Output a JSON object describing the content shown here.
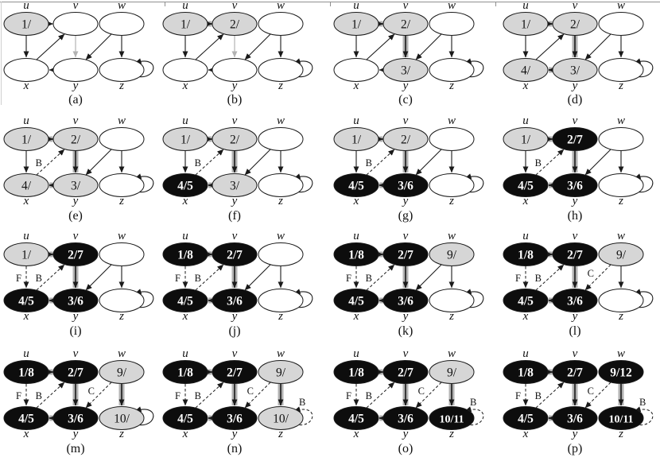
{
  "figure": {
    "title": "dfs-progress-figure",
    "vertices": [
      "u",
      "v",
      "w",
      "x",
      "y",
      "z"
    ],
    "colors": {
      "gray_fill": "#d6d6d6",
      "black_fill": "#0d0d0d",
      "white_fill": "#ffffff",
      "node_stroke": "#1a1a1a",
      "edge_black": "#1a1a1a",
      "edge_faint": "#b2b2b2",
      "tree_band": "#b2b2b2",
      "tree_core": "#2a2a2a",
      "text_black": "#111111",
      "text_white": "#ffffff"
    },
    "panels": [
      {
        "caption": "(a)",
        "nodes": {
          "u": {
            "state": "gray",
            "label": "1/"
          },
          "v": {
            "state": "white",
            "label": ""
          },
          "w": {
            "state": "white",
            "label": ""
          },
          "x": {
            "state": "white",
            "label": ""
          },
          "y": {
            "state": "white",
            "label": ""
          },
          "z": {
            "state": "white",
            "label": ""
          }
        },
        "edges": {
          "uv": {
            "style": "solid"
          },
          "ux": {
            "style": "solid"
          },
          "xv": {
            "style": "solid"
          },
          "vy": {
            "style": "faint"
          },
          "yx": {
            "style": "solid"
          },
          "wy": {
            "style": "solid"
          },
          "wz": {
            "style": "solid"
          },
          "zz": {
            "style": "solid"
          }
        }
      },
      {
        "caption": "(b)",
        "nodes": {
          "u": {
            "state": "gray",
            "label": "1/"
          },
          "v": {
            "state": "gray",
            "label": "2/"
          },
          "w": {
            "state": "white",
            "label": ""
          },
          "x": {
            "state": "white",
            "label": ""
          },
          "y": {
            "state": "white",
            "label": ""
          },
          "z": {
            "state": "white",
            "label": ""
          }
        },
        "edges": {
          "uv": {
            "style": "tree"
          },
          "ux": {
            "style": "solid"
          },
          "xv": {
            "style": "solid"
          },
          "vy": {
            "style": "faint"
          },
          "yx": {
            "style": "solid"
          },
          "wy": {
            "style": "solid"
          },
          "wz": {
            "style": "solid"
          },
          "zz": {
            "style": "solid"
          }
        }
      },
      {
        "caption": "(c)",
        "nodes": {
          "u": {
            "state": "gray",
            "label": "1/"
          },
          "v": {
            "state": "gray",
            "label": "2/"
          },
          "w": {
            "state": "white",
            "label": ""
          },
          "x": {
            "state": "white",
            "label": ""
          },
          "y": {
            "state": "gray",
            "label": "3/"
          },
          "z": {
            "state": "white",
            "label": ""
          }
        },
        "edges": {
          "uv": {
            "style": "tree"
          },
          "ux": {
            "style": "solid"
          },
          "xv": {
            "style": "solid"
          },
          "vy": {
            "style": "tree"
          },
          "yx": {
            "style": "solid"
          },
          "wy": {
            "style": "solid"
          },
          "wz": {
            "style": "solid"
          },
          "zz": {
            "style": "solid"
          }
        }
      },
      {
        "caption": "(d)",
        "nodes": {
          "u": {
            "state": "gray",
            "label": "1/"
          },
          "v": {
            "state": "gray",
            "label": "2/"
          },
          "w": {
            "state": "white",
            "label": ""
          },
          "x": {
            "state": "gray",
            "label": "4/"
          },
          "y": {
            "state": "gray",
            "label": "3/"
          },
          "z": {
            "state": "white",
            "label": ""
          }
        },
        "edges": {
          "uv": {
            "style": "tree"
          },
          "ux": {
            "style": "solid"
          },
          "xv": {
            "style": "solid"
          },
          "vy": {
            "style": "tree"
          },
          "yx": {
            "style": "tree"
          },
          "wy": {
            "style": "solid"
          },
          "wz": {
            "style": "solid"
          },
          "zz": {
            "style": "solid"
          }
        }
      },
      {
        "caption": "(e)",
        "nodes": {
          "u": {
            "state": "gray",
            "label": "1/"
          },
          "v": {
            "state": "gray",
            "label": "2/"
          },
          "w": {
            "state": "white",
            "label": ""
          },
          "x": {
            "state": "gray",
            "label": "4/"
          },
          "y": {
            "state": "gray",
            "label": "3/"
          },
          "z": {
            "state": "white",
            "label": ""
          }
        },
        "edges": {
          "uv": {
            "style": "tree"
          },
          "ux": {
            "style": "solid"
          },
          "xv": {
            "style": "dashed",
            "label": "B"
          },
          "vy": {
            "style": "tree"
          },
          "yx": {
            "style": "tree"
          },
          "wy": {
            "style": "solid"
          },
          "wz": {
            "style": "solid"
          },
          "zz": {
            "style": "solid"
          }
        }
      },
      {
        "caption": "(f)",
        "nodes": {
          "u": {
            "state": "gray",
            "label": "1/"
          },
          "v": {
            "state": "gray",
            "label": "2/"
          },
          "w": {
            "state": "white",
            "label": ""
          },
          "x": {
            "state": "black",
            "label": "4/5"
          },
          "y": {
            "state": "gray",
            "label": "3/"
          },
          "z": {
            "state": "white",
            "label": ""
          }
        },
        "edges": {
          "uv": {
            "style": "tree"
          },
          "ux": {
            "style": "solid"
          },
          "xv": {
            "style": "dashed",
            "label": "B"
          },
          "vy": {
            "style": "tree"
          },
          "yx": {
            "style": "tree"
          },
          "wy": {
            "style": "solid"
          },
          "wz": {
            "style": "solid"
          },
          "zz": {
            "style": "solid"
          }
        }
      },
      {
        "caption": "(g)",
        "nodes": {
          "u": {
            "state": "gray",
            "label": "1/"
          },
          "v": {
            "state": "gray",
            "label": "2/"
          },
          "w": {
            "state": "white",
            "label": ""
          },
          "x": {
            "state": "black",
            "label": "4/5"
          },
          "y": {
            "state": "black",
            "label": "3/6"
          },
          "z": {
            "state": "white",
            "label": ""
          }
        },
        "edges": {
          "uv": {
            "style": "tree"
          },
          "ux": {
            "style": "solid"
          },
          "xv": {
            "style": "dashed",
            "label": "B"
          },
          "vy": {
            "style": "tree"
          },
          "yx": {
            "style": "tree"
          },
          "wy": {
            "style": "solid"
          },
          "wz": {
            "style": "solid"
          },
          "zz": {
            "style": "solid"
          }
        }
      },
      {
        "caption": "(h)",
        "nodes": {
          "u": {
            "state": "gray",
            "label": "1/"
          },
          "v": {
            "state": "black",
            "label": "2/7"
          },
          "w": {
            "state": "white",
            "label": ""
          },
          "x": {
            "state": "black",
            "label": "4/5"
          },
          "y": {
            "state": "black",
            "label": "3/6"
          },
          "z": {
            "state": "white",
            "label": ""
          }
        },
        "edges": {
          "uv": {
            "style": "tree"
          },
          "ux": {
            "style": "solid"
          },
          "xv": {
            "style": "dashed",
            "label": "B"
          },
          "vy": {
            "style": "tree"
          },
          "yx": {
            "style": "tree"
          },
          "wy": {
            "style": "solid"
          },
          "wz": {
            "style": "solid"
          },
          "zz": {
            "style": "solid"
          }
        }
      },
      {
        "caption": "(i)",
        "nodes": {
          "u": {
            "state": "gray",
            "label": "1/"
          },
          "v": {
            "state": "black",
            "label": "2/7"
          },
          "w": {
            "state": "white",
            "label": ""
          },
          "x": {
            "state": "black",
            "label": "4/5"
          },
          "y": {
            "state": "black",
            "label": "3/6"
          },
          "z": {
            "state": "white",
            "label": ""
          }
        },
        "edges": {
          "uv": {
            "style": "tree"
          },
          "ux": {
            "style": "dashed",
            "label": "F"
          },
          "xv": {
            "style": "dashed",
            "label": "B"
          },
          "vy": {
            "style": "tree"
          },
          "yx": {
            "style": "tree"
          },
          "wy": {
            "style": "solid"
          },
          "wz": {
            "style": "solid"
          },
          "zz": {
            "style": "solid"
          }
        }
      },
      {
        "caption": "(j)",
        "nodes": {
          "u": {
            "state": "black",
            "label": "1/8"
          },
          "v": {
            "state": "black",
            "label": "2/7"
          },
          "w": {
            "state": "white",
            "label": ""
          },
          "x": {
            "state": "black",
            "label": "4/5"
          },
          "y": {
            "state": "black",
            "label": "3/6"
          },
          "z": {
            "state": "white",
            "label": ""
          }
        },
        "edges": {
          "uv": {
            "style": "tree"
          },
          "ux": {
            "style": "dashed",
            "label": "F"
          },
          "xv": {
            "style": "dashed",
            "label": "B"
          },
          "vy": {
            "style": "tree"
          },
          "yx": {
            "style": "tree"
          },
          "wy": {
            "style": "solid"
          },
          "wz": {
            "style": "solid"
          },
          "zz": {
            "style": "solid"
          }
        }
      },
      {
        "caption": "(k)",
        "nodes": {
          "u": {
            "state": "black",
            "label": "1/8"
          },
          "v": {
            "state": "black",
            "label": "2/7"
          },
          "w": {
            "state": "gray",
            "label": "9/"
          },
          "x": {
            "state": "black",
            "label": "4/5"
          },
          "y": {
            "state": "black",
            "label": "3/6"
          },
          "z": {
            "state": "white",
            "label": ""
          }
        },
        "edges": {
          "uv": {
            "style": "tree"
          },
          "ux": {
            "style": "dashed",
            "label": "F"
          },
          "xv": {
            "style": "dashed",
            "label": "B"
          },
          "vy": {
            "style": "tree"
          },
          "yx": {
            "style": "tree"
          },
          "wy": {
            "style": "solid"
          },
          "wz": {
            "style": "solid"
          },
          "zz": {
            "style": "solid"
          }
        }
      },
      {
        "caption": "(l)",
        "nodes": {
          "u": {
            "state": "black",
            "label": "1/8"
          },
          "v": {
            "state": "black",
            "label": "2/7"
          },
          "w": {
            "state": "gray",
            "label": "9/"
          },
          "x": {
            "state": "black",
            "label": "4/5"
          },
          "y": {
            "state": "black",
            "label": "3/6"
          },
          "z": {
            "state": "white",
            "label": ""
          }
        },
        "edges": {
          "uv": {
            "style": "tree"
          },
          "ux": {
            "style": "dashed",
            "label": "F"
          },
          "xv": {
            "style": "dashed",
            "label": "B"
          },
          "vy": {
            "style": "tree"
          },
          "yx": {
            "style": "tree"
          },
          "wy": {
            "style": "dashed",
            "label": "C"
          },
          "wz": {
            "style": "solid"
          },
          "zz": {
            "style": "solid"
          }
        }
      },
      {
        "caption": "(m)",
        "nodes": {
          "u": {
            "state": "black",
            "label": "1/8"
          },
          "v": {
            "state": "black",
            "label": "2/7"
          },
          "w": {
            "state": "gray",
            "label": "9/"
          },
          "x": {
            "state": "black",
            "label": "4/5"
          },
          "y": {
            "state": "black",
            "label": "3/6"
          },
          "z": {
            "state": "gray",
            "label": "10/"
          }
        },
        "edges": {
          "uv": {
            "style": "tree"
          },
          "ux": {
            "style": "dashed",
            "label": "F"
          },
          "xv": {
            "style": "dashed",
            "label": "B"
          },
          "vy": {
            "style": "tree"
          },
          "yx": {
            "style": "tree"
          },
          "wy": {
            "style": "dashed",
            "label": "C"
          },
          "wz": {
            "style": "tree"
          },
          "zz": {
            "style": "solid"
          }
        }
      },
      {
        "caption": "(n)",
        "nodes": {
          "u": {
            "state": "black",
            "label": "1/8"
          },
          "v": {
            "state": "black",
            "label": "2/7"
          },
          "w": {
            "state": "gray",
            "label": "9/"
          },
          "x": {
            "state": "black",
            "label": "4/5"
          },
          "y": {
            "state": "black",
            "label": "3/6"
          },
          "z": {
            "state": "gray",
            "label": "10/"
          }
        },
        "edges": {
          "uv": {
            "style": "tree"
          },
          "ux": {
            "style": "dashed",
            "label": "F"
          },
          "xv": {
            "style": "dashed",
            "label": "B"
          },
          "vy": {
            "style": "tree"
          },
          "yx": {
            "style": "tree"
          },
          "wy": {
            "style": "dashed",
            "label": "C"
          },
          "wz": {
            "style": "tree"
          },
          "zz": {
            "style": "dashed",
            "label": "B"
          }
        }
      },
      {
        "caption": "(o)",
        "nodes": {
          "u": {
            "state": "black",
            "label": "1/8"
          },
          "v": {
            "state": "black",
            "label": "2/7"
          },
          "w": {
            "state": "gray",
            "label": "9/"
          },
          "x": {
            "state": "black",
            "label": "4/5"
          },
          "y": {
            "state": "black",
            "label": "3/6"
          },
          "z": {
            "state": "black",
            "label": "10/11"
          }
        },
        "edges": {
          "uv": {
            "style": "tree"
          },
          "ux": {
            "style": "dashed",
            "label": "F"
          },
          "xv": {
            "style": "dashed",
            "label": "B"
          },
          "vy": {
            "style": "tree"
          },
          "yx": {
            "style": "tree"
          },
          "wy": {
            "style": "dashed",
            "label": "C"
          },
          "wz": {
            "style": "tree"
          },
          "zz": {
            "style": "dashed",
            "label": "B"
          }
        }
      },
      {
        "caption": "(p)",
        "nodes": {
          "u": {
            "state": "black",
            "label": "1/8"
          },
          "v": {
            "state": "black",
            "label": "2/7"
          },
          "w": {
            "state": "black",
            "label": "9/12"
          },
          "x": {
            "state": "black",
            "label": "4/5"
          },
          "y": {
            "state": "black",
            "label": "3/6"
          },
          "z": {
            "state": "black",
            "label": "10/11"
          }
        },
        "edges": {
          "uv": {
            "style": "tree"
          },
          "ux": {
            "style": "dashed",
            "label": "F"
          },
          "xv": {
            "style": "dashed",
            "label": "B"
          },
          "vy": {
            "style": "tree"
          },
          "yx": {
            "style": "tree"
          },
          "wy": {
            "style": "dashed",
            "label": "C"
          },
          "wz": {
            "style": "tree"
          },
          "zz": {
            "style": "dashed",
            "label": "B"
          }
        }
      }
    ]
  }
}
